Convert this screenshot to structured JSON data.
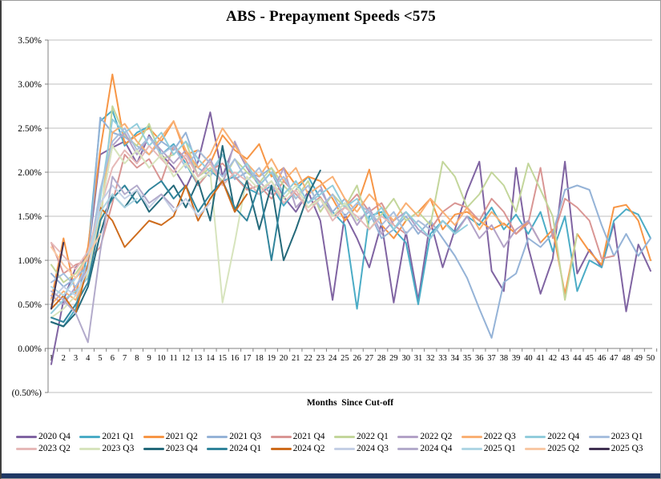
{
  "window": {
    "bottom_bar_color": "#1f3864",
    "border_color": "#9b9b9b"
  },
  "chart_data": {
    "type": "line",
    "title": "ABS - Prepayment Speeds <575",
    "xlabel": "Months  Since Cut-off",
    "ylabel": "",
    "x_ticks": [
      1,
      2,
      3,
      4,
      5,
      6,
      7,
      8,
      9,
      10,
      11,
      12,
      13,
      14,
      15,
      16,
      17,
      18,
      19,
      20,
      21,
      22,
      23,
      24,
      25,
      26,
      27,
      28,
      29,
      30,
      31,
      32,
      33,
      34,
      35,
      36,
      37,
      38,
      39,
      40,
      41,
      42,
      43,
      44,
      45,
      46,
      47,
      48,
      49,
      50
    ],
    "y_ticks": [
      "3.50%",
      "3.00%",
      "2.50%",
      "2.00%",
      "1.50%",
      "1.00%",
      "0.50%",
      "0.00%",
      "(0.50%)"
    ],
    "ylim": [
      -0.5,
      3.5
    ],
    "grid": true,
    "grid_color": "#bfbfbf",
    "axis_color": "#808080",
    "legend_position": "bottom",
    "units": "percent CPR per month, values in %",
    "series": [
      {
        "name": "2020 Q4",
        "color": "#8064a2",
        "values": [
          -0.18,
          0.55,
          0.92,
          1.05,
          2.2,
          2.28,
          2.35,
          2.1,
          2.42,
          2.2,
          2.05,
          1.82,
          2.12,
          2.68,
          1.95,
          2.32,
          2.05,
          1.85,
          2.0,
          1.72,
          1.55,
          1.78,
          1.45,
          0.55,
          1.52,
          1.25,
          0.92,
          1.42,
          0.52,
          1.32,
          0.55,
          1.45,
          0.92,
          1.35,
          1.78,
          2.12,
          0.88,
          0.65,
          2.05,
          1.15,
          0.62,
          1.02,
          2.12,
          0.85,
          1.12,
          0.92,
          1.42,
          0.42,
          1.18,
          0.88
        ]
      },
      {
        "name": "2021 Q1",
        "color": "#4bacc6",
        "values": [
          0.3,
          0.25,
          0.45,
          1.1,
          2.58,
          2.7,
          2.3,
          2.45,
          2.52,
          2.2,
          2.32,
          2.1,
          1.85,
          2.02,
          1.9,
          1.95,
          1.82,
          1.75,
          1.85,
          1.62,
          1.8,
          1.95,
          1.7,
          1.55,
          1.4,
          0.45,
          1.5,
          1.55,
          1.35,
          1.2,
          0.5,
          1.3,
          1.45,
          1.32,
          1.5,
          1.4,
          1.6,
          1.35,
          1.52,
          1.3,
          1.55,
          1.1,
          1.5,
          0.65,
          1.0,
          0.92,
          1.45,
          1.58,
          1.52,
          1.25
        ]
      },
      {
        "name": "2021 Q2",
        "color": "#f79646",
        "values": [
          0.55,
          1.25,
          0.62,
          1.15,
          2.25,
          3.11,
          2.32,
          2.42,
          2.5,
          2.35,
          2.58,
          2.2,
          2.25,
          2.1,
          2.42,
          2.25,
          2.15,
          2.32,
          1.95,
          2.05,
          1.85,
          1.95,
          1.9,
          1.7,
          1.45,
          1.62,
          2.03,
          1.4,
          1.25,
          1.45,
          1.55,
          1.7,
          1.35,
          1.52,
          1.55,
          1.45,
          1.35,
          1.42,
          1.3,
          1.45,
          1.2,
          1.35,
          0.62,
          1.3,
          1.1,
          0.95,
          1.6,
          1.63,
          1.45,
          1.0
        ]
      },
      {
        "name": "2021 Q3",
        "color": "#95b3d7",
        "values": [
          0.85,
          0.7,
          0.8,
          0.95,
          2.62,
          2.45,
          2.4,
          2.3,
          2.2,
          2.35,
          2.25,
          2.45,
          2.05,
          1.95,
          2.2,
          1.92,
          2.0,
          1.95,
          2.05,
          1.75,
          1.9,
          1.65,
          1.8,
          1.55,
          1.7,
          1.45,
          1.55,
          1.25,
          1.35,
          1.5,
          1.3,
          1.45,
          1.25,
          1.05,
          0.8,
          0.45,
          0.12,
          0.75,
          0.85,
          1.25,
          1.15,
          1.3,
          1.8,
          1.85,
          1.8,
          1.4,
          1.05,
          1.3,
          1.05,
          1.25
        ]
      },
      {
        "name": "2021 Q4",
        "color": "#d99694",
        "values": [
          1.2,
          0.85,
          0.95,
          1.0,
          1.15,
          1.65,
          2.2,
          2.05,
          2.15,
          1.9,
          2.3,
          2.15,
          1.85,
          2.02,
          2.1,
          1.95,
          1.8,
          1.85,
          1.7,
          1.9,
          1.75,
          1.6,
          1.72,
          1.5,
          1.6,
          1.75,
          1.55,
          1.65,
          1.4,
          1.3,
          1.45,
          1.35,
          1.55,
          1.65,
          1.6,
          1.45,
          1.7,
          1.55,
          1.3,
          1.42,
          2.05,
          1.25,
          1.7,
          1.6,
          1.45,
          1.02,
          1.05
        ]
      },
      {
        "name": "2022 Q1",
        "color": "#c3d69b",
        "values": [
          0.95,
          0.75,
          0.85,
          1.05,
          1.4,
          2.75,
          2.42,
          2.3,
          2.55,
          2.15,
          2.2,
          2.35,
          1.95,
          2.05,
          1.9,
          2.15,
          2.0,
          1.88,
          2.05,
          1.85,
          1.7,
          1.9,
          1.55,
          1.75,
          1.6,
          1.85,
          1.35,
          1.52,
          1.7,
          1.45,
          1.55,
          1.4,
          2.12,
          1.95,
          1.6,
          1.75,
          2.0,
          1.85,
          1.55,
          2.1,
          1.8,
          1.5,
          0.55,
          1.3
        ]
      },
      {
        "name": "2022 Q2",
        "color": "#b3a2c7",
        "values": [
          0.6,
          0.5,
          0.7,
          0.9,
          1.55,
          2.3,
          2.45,
          2.2,
          2.4,
          2.25,
          2.1,
          2.25,
          1.95,
          2.15,
          1.85,
          2.35,
          2.05,
          1.9,
          1.75,
          2.05,
          1.6,
          1.75,
          1.85,
          1.5,
          1.65,
          1.4,
          1.6,
          1.3,
          1.45,
          1.55,
          1.35,
          1.25,
          1.45,
          1.3,
          1.5,
          1.25,
          1.4,
          1.15,
          1.35,
          1.45,
          1.2
        ]
      },
      {
        "name": "2022 Q3",
        "color": "#f9b074",
        "values": [
          0.5,
          0.65,
          0.55,
          0.85,
          1.5,
          2.45,
          2.55,
          2.35,
          2.2,
          2.4,
          2.58,
          2.25,
          2.05,
          2.2,
          2.5,
          2.3,
          2.1,
          1.95,
          2.15,
          1.9,
          2.05,
          1.75,
          1.85,
          1.95,
          1.7,
          1.55,
          1.75,
          1.6,
          1.45,
          1.65,
          1.5,
          1.7,
          1.55,
          1.4,
          1.6,
          1.35,
          1.55,
          1.4
        ]
      },
      {
        "name": "2022 Q4",
        "color": "#92cddc",
        "values": [
          0.4,
          0.55,
          0.65,
          0.8,
          1.7,
          2.6,
          2.45,
          2.55,
          2.3,
          2.45,
          2.2,
          2.35,
          2.15,
          2.0,
          2.2,
          1.95,
          2.1,
          1.85,
          2.0,
          1.75,
          1.9,
          1.65,
          1.75,
          1.85,
          1.6,
          1.7,
          1.45,
          1.6,
          1.35,
          1.55,
          1.4,
          1.25,
          1.45,
          1.3,
          1.4
        ]
      },
      {
        "name": "2023 Q1",
        "color": "#a7bfde",
        "values": [
          0.75,
          0.85,
          0.7,
          0.95,
          1.8,
          2.35,
          2.5,
          2.25,
          2.4,
          2.2,
          2.3,
          2.05,
          2.25,
          2.1,
          1.95,
          2.15,
          1.9,
          2.05,
          1.8,
          1.95,
          1.7,
          1.85,
          1.6,
          1.75,
          1.5,
          1.65,
          1.55,
          1.4,
          1.55,
          1.3,
          1.45,
          1.35
        ]
      },
      {
        "name": "2023 Q2",
        "color": "#e6b9b8",
        "values": [
          1.2,
          1.05,
          0.9,
          1.1,
          1.6,
          2.05,
          2.25,
          2.1,
          2.3,
          2.15,
          2.0,
          2.2,
          1.95,
          2.1,
          1.85,
          2.0,
          1.9,
          1.75,
          1.9,
          1.65,
          1.8,
          1.55,
          1.7,
          1.45,
          1.6,
          1.5,
          1.35,
          1.5,
          1.4
        ]
      },
      {
        "name": "2023 Q3",
        "color": "#d7e4bd",
        "values": [
          0.35,
          0.45,
          0.6,
          0.85,
          1.55,
          2.3,
          2.1,
          2.25,
          2.05,
          2.2,
          1.95,
          2.1,
          1.9,
          2.0,
          0.52,
          1.2,
          1.95,
          1.8,
          1.9,
          1.7,
          1.85,
          1.6,
          1.7,
          1.5,
          1.65,
          1.45
        ]
      },
      {
        "name": "2023 Q4",
        "color": "#24697a",
        "values": [
          0.3,
          0.25,
          0.4,
          0.7,
          1.3,
          1.75,
          1.6,
          1.8,
          1.55,
          1.7,
          1.85,
          1.6,
          1.9,
          1.45,
          2.3,
          1.55,
          1.9,
          1.35,
          1.85,
          1.0,
          1.35,
          1.75,
          2.02
        ]
      },
      {
        "name": "2024 Q1",
        "color": "#31849b",
        "values": [
          0.35,
          0.3,
          0.5,
          0.75,
          1.45,
          1.7,
          1.85,
          1.65,
          1.8,
          1.9,
          1.7,
          1.85,
          1.55,
          1.75,
          1.9,
          1.6,
          1.45,
          1.85,
          1.0,
          1.85
        ]
      },
      {
        "name": "2024 Q2",
        "color": "#ce6c1d",
        "values": [
          0.45,
          0.6,
          0.4,
          0.95,
          1.6,
          1.45,
          1.15,
          1.3,
          1.45,
          1.4,
          1.5,
          1.85,
          1.45,
          1.7,
          1.9,
          1.55,
          1.75
        ]
      },
      {
        "name": "2024 Q3",
        "color": "#c4cfe5",
        "values": [
          0.55,
          0.7,
          0.6,
          0.9,
          1.65,
          1.85,
          1.7,
          1.8,
          1.6,
          1.75,
          1.55,
          1.7,
          1.5,
          1.65
        ]
      },
      {
        "name": "2024 Q4",
        "color": "#b3abcb",
        "values": [
          0.65,
          0.55,
          0.4,
          0.07,
          1.1,
          1.95,
          1.75,
          1.85,
          1.65,
          1.75,
          1.6
        ]
      },
      {
        "name": "2025 Q1",
        "color": "#afd6e4",
        "values": [
          0.7,
          0.6,
          0.8,
          1.05,
          1.55,
          1.75,
          1.6,
          1.7
        ]
      },
      {
        "name": "2025 Q2",
        "color": "#f8c8a4",
        "values": [
          1.15,
          0.95,
          0.8,
          1.05,
          1.3
        ]
      },
      {
        "name": "2025 Q3",
        "color": "#403152",
        "values": [
          0.45,
          1.2
        ]
      }
    ]
  }
}
